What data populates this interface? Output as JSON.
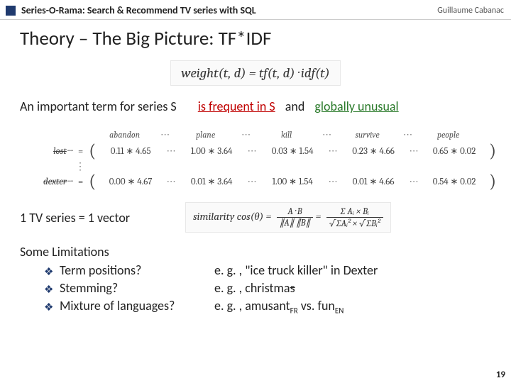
{
  "header": {
    "title": "Series-O-Rama: Search & Recommend TV series with SQL",
    "author": "Guillaume Cabanac"
  },
  "main_title": "Theory – The Big Picture: TF*IDF",
  "weight_formula": "weight(t, d) = tf(t, d) · idf(t)",
  "keyline": {
    "important": "An important term for series S",
    "frequent": "is frequent in S",
    "and": "and",
    "global": "globally unusual"
  },
  "matrix": {
    "terms": [
      "abandon",
      "plane",
      "kill",
      "survive",
      "people"
    ],
    "rows": [
      {
        "label": "lost",
        "strike": true,
        "cells": [
          "0.11 ∗ 4.65",
          "1.00 ∗ 3.64",
          "0.03 ∗ 1.54",
          "0.23 ∗ 4.66",
          "0.65 ∗ 0.02"
        ]
      },
      {
        "label": "dexter",
        "strike": true,
        "cells": [
          "0.00 ∗ 4.67",
          "0.01 ∗ 3.64",
          "1.00 ∗ 1.54",
          "0.01 ∗ 4.66",
          "0.54 ∗ 0.02"
        ]
      }
    ]
  },
  "vector_label": "1 TV series = 1 vector",
  "similarity_prefix": "similarity cos(θ) =",
  "similarity_num": "A · B",
  "similarity_den": "∥A∥ ∥B∥",
  "similarity_sum_num": "∑ Aᵢ × Bᵢ",
  "similarity_sum_den": "√∑Aᵢ² × √∑Bᵢ²",
  "limitations": {
    "title": "Some Limitations",
    "rows": [
      {
        "q": "Term positions?",
        "e_pre": "e. g. , \"ice truck killer\" in Dexter",
        "e_strike": "",
        "e_post": ""
      },
      {
        "q": "Stemming?",
        "e_pre": "e. g. , christma",
        "e_strike": "s",
        "e_post": ""
      },
      {
        "q": "Mixture of languages?",
        "e_pre": "e. g. , amusant",
        "e_sub1": "FR",
        "e_mid": " vs. fun",
        "e_sub2": "EN"
      }
    ]
  },
  "page_number": "19",
  "colors": {
    "accent_blue": "#1f3a6e",
    "red": "#c00000",
    "green": "#2a7a2a"
  }
}
